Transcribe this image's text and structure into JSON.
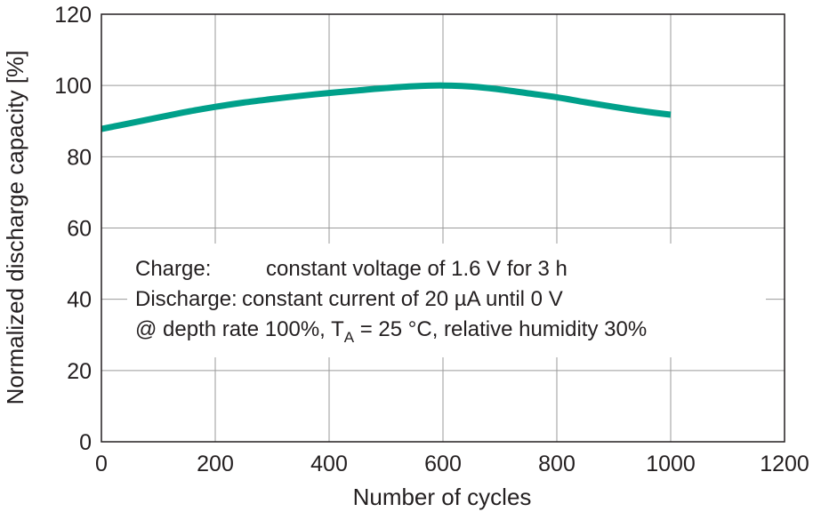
{
  "chart_data": {
    "type": "line",
    "title": "",
    "xlabel": "Number of cycles",
    "ylabel": "Normalized discharge capacity [%]",
    "xlim": [
      0,
      1200
    ],
    "ylim": [
      0,
      120
    ],
    "x_ticks": [
      "0",
      "200",
      "400",
      "600",
      "800",
      "1000",
      "1200"
    ],
    "y_ticks": [
      "0",
      "20",
      "40",
      "60",
      "80",
      "100",
      "120"
    ],
    "grid": true,
    "legend": "none",
    "series": [
      {
        "color": "#00a08a",
        "x": [
          0,
          50,
          100,
          150,
          200,
          250,
          300,
          350,
          400,
          450,
          500,
          550,
          600,
          650,
          700,
          750,
          800,
          850,
          900,
          950,
          1000
        ],
        "y": [
          87.8,
          89.4,
          91.0,
          92.6,
          94.0,
          95.2,
          96.2,
          97.1,
          97.9,
          98.6,
          99.3,
          99.8,
          100.0,
          99.7,
          98.9,
          97.8,
          96.7,
          95.3,
          94.0,
          92.8,
          91.8
        ]
      }
    ],
    "annotation": {
      "line1_key": "Charge:",
      "line1_value": "constant voltage of 1.6 V for 3 h",
      "line2_key": "Discharge:",
      "line2_value": "constant current of 20 µA until 0 V",
      "line3_prefix": "@ depth rate 100%, T",
      "line3_sub": "A",
      "line3_suffix": " = 25 °C, relative humidity 30%"
    }
  }
}
